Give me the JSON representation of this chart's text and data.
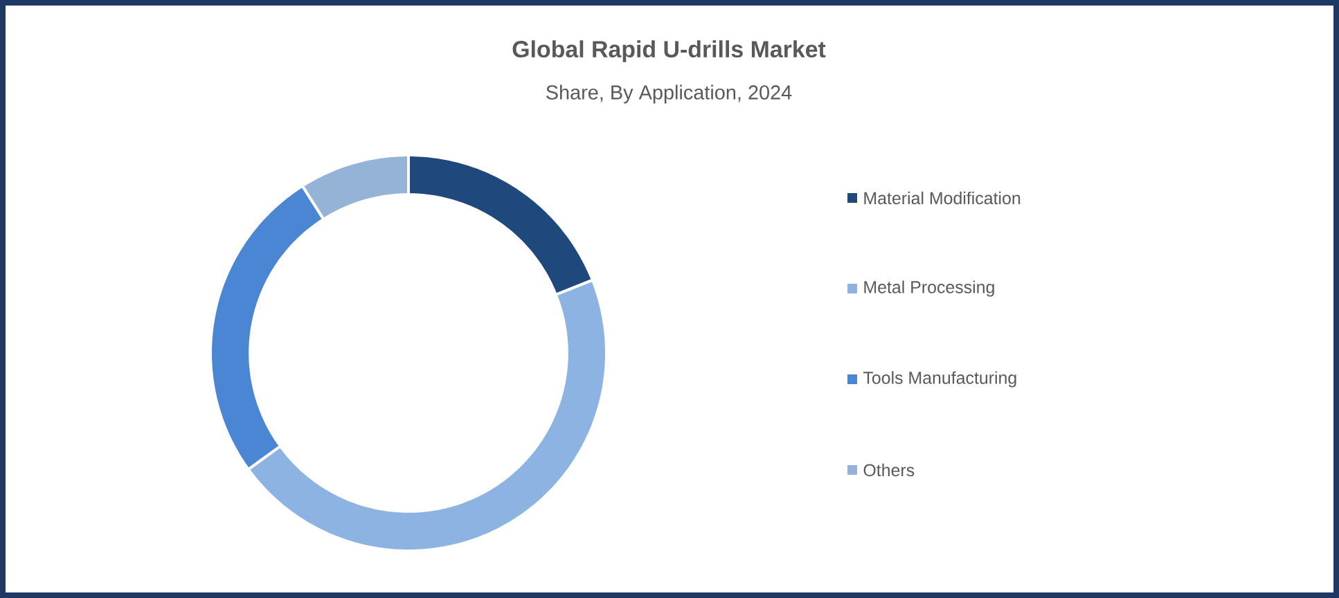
{
  "chart_data": {
    "type": "donut",
    "title": "Global Rapid U-drills Market",
    "subtitle": "Share, By Application, 2024",
    "categories": [
      "Material Modification",
      "Metal Processing",
      "Tools Manufacturing",
      "Others"
    ],
    "values": [
      19,
      46,
      26,
      9
    ],
    "colors": [
      "#1f497d",
      "#8db3e2",
      "#4a86d4",
      "#95b3d7"
    ],
    "legend": "right"
  }
}
